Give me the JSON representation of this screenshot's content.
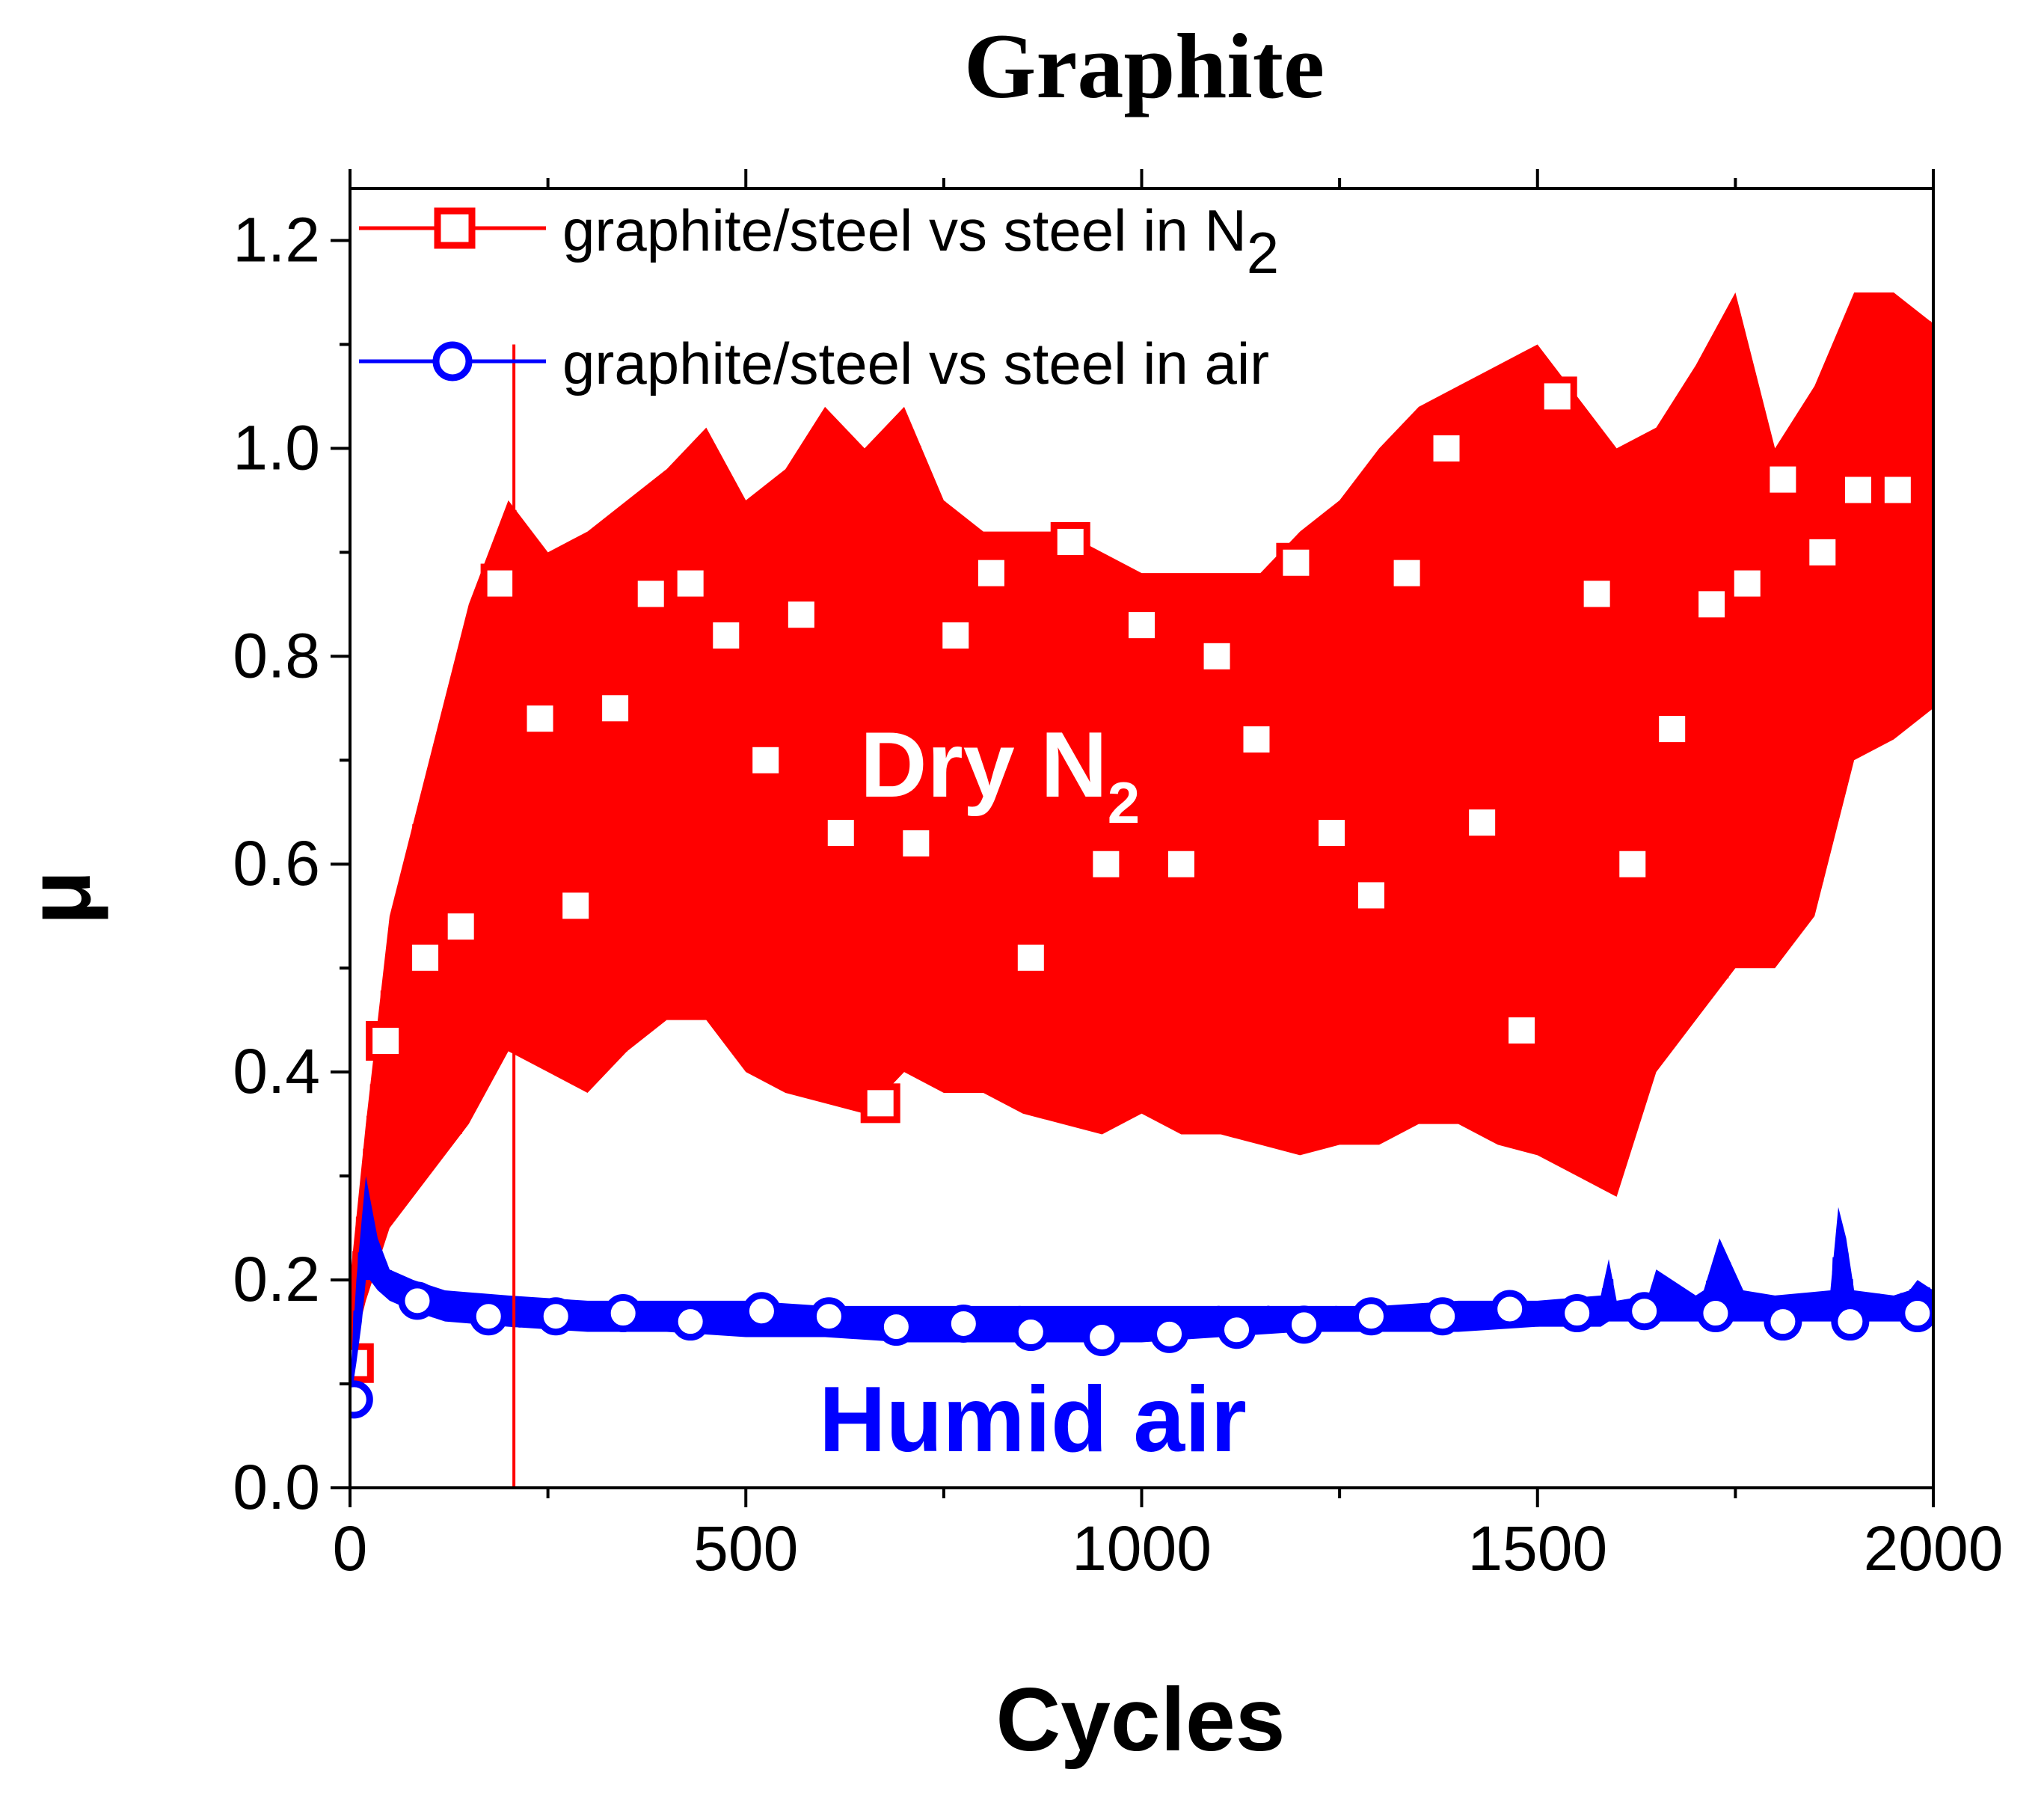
{
  "chart_data": {
    "type": "line",
    "title": "Graphite",
    "xlabel": "Cycles",
    "ylabel": "μ",
    "xlim": [
      0,
      2000
    ],
    "ylim": [
      0,
      1.25
    ],
    "xticks": [
      0,
      500,
      1000,
      1500,
      2000
    ],
    "xtick_labels": [
      "0",
      "500",
      "1000",
      "1500",
      "2000"
    ],
    "yticks": [
      0,
      0.2,
      0.4,
      0.6,
      0.8,
      1.0,
      1.2
    ],
    "ytick_labels": [
      "0.0",
      "0.2",
      "0.4",
      "0.6",
      "0.8",
      "1.0",
      "1.2"
    ],
    "legend_position": "top-left",
    "series": [
      {
        "name": "graphite/steel vs steel in N2",
        "legend_label": "graphite/steel vs steel in N",
        "legend_sub": "2",
        "color": "#ff0000",
        "marker": "open-square",
        "band_x": [
          0,
          20,
          50,
          100,
          150,
          200,
          250,
          300,
          350,
          400,
          450,
          500,
          550,
          600,
          650,
          700,
          750,
          800,
          850,
          900,
          950,
          1000,
          1050,
          1100,
          1150,
          1200,
          1250,
          1300,
          1350,
          1400,
          1450,
          1500,
          1550,
          1600,
          1650,
          1700,
          1750,
          1800,
          1850,
          1900,
          1950,
          2000
        ],
        "band_lo": [
          0.12,
          0.18,
          0.25,
          0.3,
          0.35,
          0.42,
          0.4,
          0.38,
          0.42,
          0.45,
          0.45,
          0.4,
          0.38,
          0.37,
          0.36,
          0.4,
          0.38,
          0.38,
          0.36,
          0.35,
          0.34,
          0.36,
          0.34,
          0.34,
          0.33,
          0.32,
          0.33,
          0.33,
          0.35,
          0.35,
          0.33,
          0.32,
          0.3,
          0.28,
          0.4,
          0.45,
          0.5,
          0.5,
          0.55,
          0.7,
          0.72,
          0.75
        ],
        "band_hi": [
          0.2,
          0.35,
          0.55,
          0.7,
          0.85,
          0.95,
          0.9,
          0.92,
          0.95,
          0.98,
          1.02,
          0.95,
          0.98,
          1.04,
          1.0,
          1.04,
          0.95,
          0.92,
          0.92,
          0.92,
          0.9,
          0.88,
          0.88,
          0.88,
          0.88,
          0.92,
          0.95,
          1.0,
          1.04,
          1.06,
          1.08,
          1.1,
          1.05,
          1.0,
          1.02,
          1.08,
          1.15,
          1.0,
          1.06,
          1.15,
          1.15,
          1.12
        ],
        "markers_x": [
          5,
          45,
          95,
          140,
          190,
          240,
          285,
          335,
          380,
          430,
          475,
          525,
          570,
          620,
          670,
          715,
          765,
          810,
          860,
          910,
          955,
          1000,
          1050,
          1095,
          1145,
          1195,
          1240,
          1290,
          1335,
          1385,
          1430,
          1480,
          1525,
          1575,
          1620,
          1670,
          1720,
          1765,
          1810,
          1860,
          1905,
          1955
        ],
        "markers_y": [
          0.12,
          0.43,
          0.51,
          0.54,
          0.87,
          0.74,
          0.56,
          0.75,
          0.86,
          0.87,
          0.82,
          0.7,
          0.84,
          0.63,
          0.37,
          0.62,
          0.82,
          0.88,
          0.51,
          0.91,
          0.6,
          0.83,
          0.6,
          0.8,
          0.72,
          0.89,
          0.63,
          0.57,
          0.88,
          1.0,
          0.64,
          0.44,
          1.05,
          0.86,
          0.6,
          0.73,
          0.85,
          0.87,
          0.97,
          0.9,
          0.96,
          0.96
        ]
      },
      {
        "name": "graphite/steel vs steel in air",
        "legend_label": "graphite/steel vs steel in air",
        "color": "#0000ff",
        "marker": "open-circle",
        "band_x": [
          0,
          8,
          15,
          20,
          25,
          35,
          50,
          80,
          120,
          200,
          300,
          400,
          500,
          600,
          700,
          800,
          900,
          1000,
          1100,
          1200,
          1300,
          1400,
          1500,
          1580,
          1590,
          1600,
          1640,
          1650,
          1700,
          1710,
          1730,
          1760,
          1800,
          1870,
          1880,
          1890,
          1900,
          1950,
          1970,
          1980,
          2000
        ],
        "band_lo": [
          0.08,
          0.12,
          0.16,
          0.2,
          0.2,
          0.19,
          0.18,
          0.17,
          0.16,
          0.155,
          0.15,
          0.15,
          0.145,
          0.145,
          0.14,
          0.14,
          0.14,
          0.14,
          0.145,
          0.15,
          0.15,
          0.15,
          0.155,
          0.155,
          0.16,
          0.16,
          0.16,
          0.16,
          0.16,
          0.16,
          0.16,
          0.16,
          0.16,
          0.16,
          0.16,
          0.16,
          0.16,
          0.16,
          0.16,
          0.16,
          0.16
        ],
        "band_hi": [
          0.1,
          0.2,
          0.26,
          0.3,
          0.28,
          0.24,
          0.21,
          0.2,
          0.19,
          0.185,
          0.18,
          0.18,
          0.18,
          0.175,
          0.175,
          0.175,
          0.175,
          0.175,
          0.175,
          0.175,
          0.175,
          0.18,
          0.18,
          0.185,
          0.22,
          0.18,
          0.185,
          0.21,
          0.185,
          0.19,
          0.24,
          0.19,
          0.185,
          0.19,
          0.27,
          0.24,
          0.19,
          0.185,
          0.19,
          0.2,
          0.19
        ],
        "markers_x": [
          5,
          85,
          175,
          260,
          345,
          430,
          520,
          605,
          690,
          775,
          860,
          950,
          1035,
          1120,
          1205,
          1290,
          1380,
          1465,
          1550,
          1635,
          1725,
          1810,
          1895,
          1980
        ],
        "markers_y": [
          0.085,
          0.18,
          0.165,
          0.165,
          0.168,
          0.16,
          0.17,
          0.165,
          0.155,
          0.158,
          0.15,
          0.145,
          0.148,
          0.152,
          0.157,
          0.165,
          0.165,
          0.172,
          0.168,
          0.17,
          0.168,
          0.16,
          0.16,
          0.168
        ]
      }
    ],
    "annotations": [
      {
        "text": "Dry N",
        "sub": "2",
        "color": "#ff0000"
      },
      {
        "text": "Humid air",
        "color": "#0000ff"
      }
    ]
  }
}
